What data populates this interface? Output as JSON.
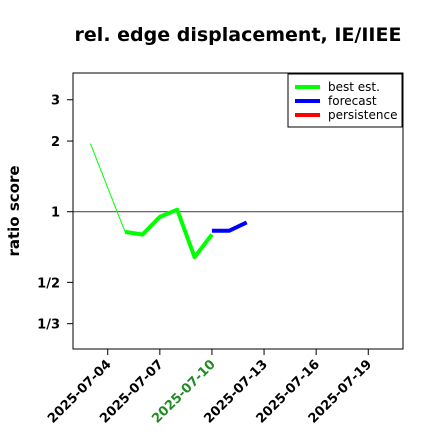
{
  "chart_data": {
    "type": "line",
    "title": "rel. edge displacement, IE/IIEE",
    "xlabel": "",
    "ylabel": "ratio score",
    "x_axis": {
      "type": "date",
      "range": [
        "2025-07-02",
        "2025-07-21"
      ],
      "ticks": [
        {
          "date": "2025-07-04",
          "label": "2025-07-04",
          "color": "#000000"
        },
        {
          "date": "2025-07-07",
          "label": "2025-07-07",
          "color": "#000000"
        },
        {
          "date": "2025-07-10",
          "label": "2025-07-10",
          "color": "#228B22"
        },
        {
          "date": "2025-07-13",
          "label": "2025-07-13",
          "color": "#000000"
        },
        {
          "date": "2025-07-16",
          "label": "2025-07-16",
          "color": "#000000"
        },
        {
          "date": "2025-07-19",
          "label": "2025-07-19",
          "color": "#000000"
        }
      ]
    },
    "y_axis": {
      "scale": "log",
      "range": [
        0.26,
        3.9
      ],
      "ticks": [
        {
          "value": 0.3333,
          "label": "1/3"
        },
        {
          "value": 0.5,
          "label": "1/2"
        },
        {
          "value": 1,
          "label": "1"
        },
        {
          "value": 2,
          "label": "2"
        },
        {
          "value": 3,
          "label": "3"
        }
      ],
      "reference_line": 1
    },
    "grid": false,
    "legend": {
      "position": "top-right",
      "entries": [
        {
          "name": "best est.",
          "color": "#00ff00"
        },
        {
          "name": "forecast",
          "color": "#0000ff"
        },
        {
          "name": "persistence",
          "color": "#ff0000"
        }
      ]
    },
    "series": [
      {
        "name": "best est.",
        "color": "#00ff00",
        "segments": [
          {
            "width": "thin",
            "points": [
              [
                "2025-07-03",
                1.95
              ],
              [
                "2025-07-05",
                0.82
              ]
            ]
          },
          {
            "width": "thick",
            "points": [
              [
                "2025-07-05",
                0.82
              ],
              [
                "2025-07-06",
                0.8
              ],
              [
                "2025-07-07",
                0.95
              ],
              [
                "2025-07-08",
                1.02
              ],
              [
                "2025-07-09",
                0.64
              ],
              [
                "2025-07-10",
                0.8
              ]
            ]
          }
        ]
      },
      {
        "name": "forecast",
        "color": "#0000ff",
        "segments": [
          {
            "width": "thick",
            "points": [
              [
                "2025-07-10",
                0.83
              ],
              [
                "2025-07-11",
                0.83
              ],
              [
                "2025-07-12",
                0.9
              ]
            ]
          }
        ]
      },
      {
        "name": "persistence",
        "color": "#ff0000",
        "segments": []
      }
    ]
  }
}
